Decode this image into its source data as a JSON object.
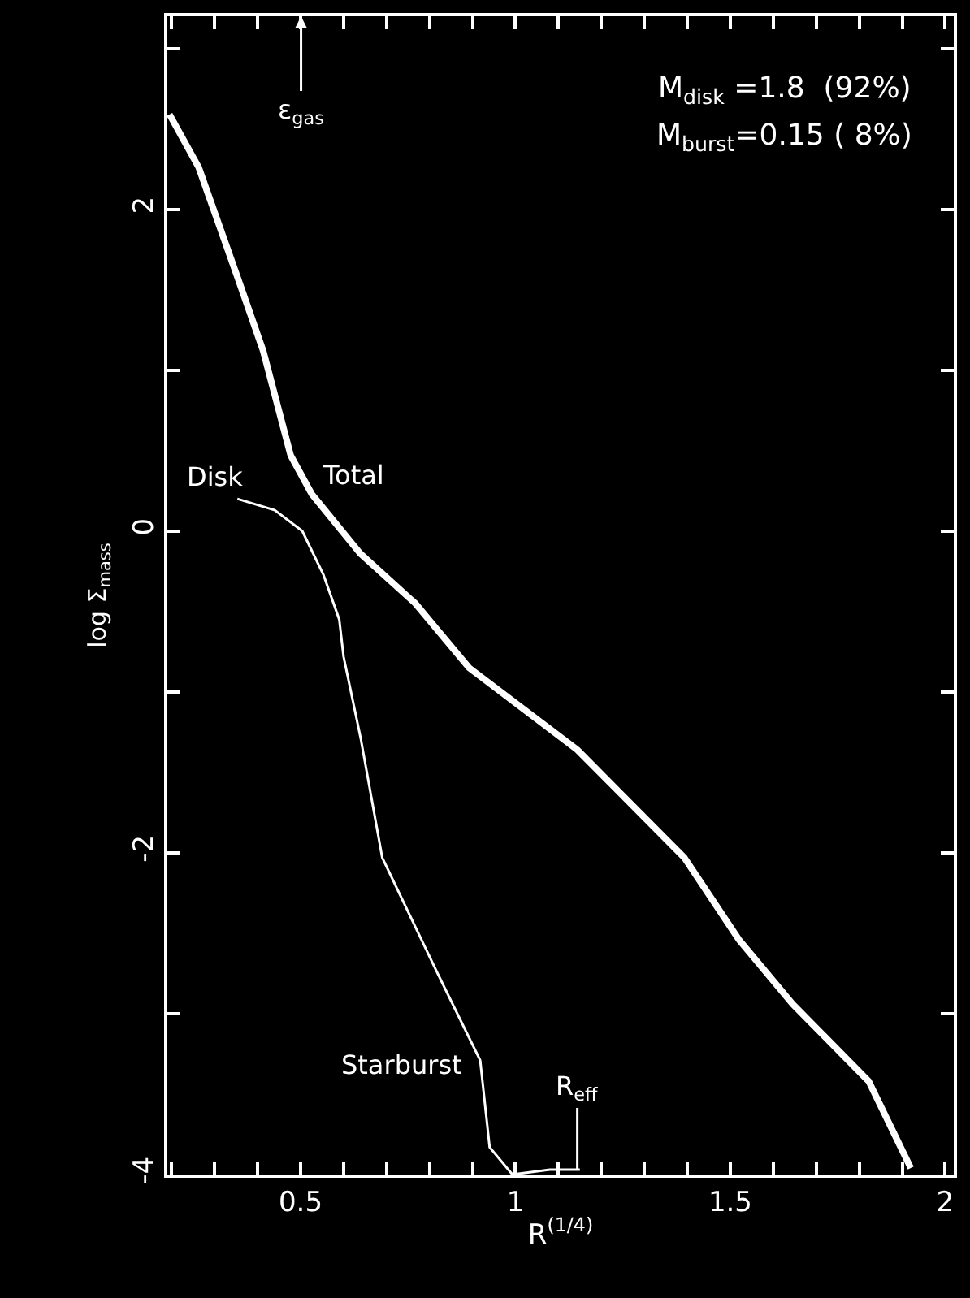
{
  "chart_data": {
    "type": "line",
    "xlabel": "R$^{(1/4)}$",
    "ylabel": "log Σ$_{mass}$",
    "xlim": [
      0.19,
      2.02
    ],
    "ylim": [
      -4,
      3.2
    ],
    "xticks": [
      {
        "value": 0.2,
        "label": null
      },
      {
        "value": 0.3,
        "label": null
      },
      {
        "value": 0.4,
        "label": null
      },
      0.5,
      {
        "value": 0.6,
        "label": null
      },
      {
        "value": 0.7,
        "label": null
      },
      {
        "value": 0.8,
        "label": null
      },
      {
        "value": 0.9,
        "label": null
      },
      1,
      {
        "value": 1.1,
        "label": null
      },
      {
        "value": 1.2,
        "label": null
      },
      {
        "value": 1.3,
        "label": null
      },
      {
        "value": 1.4,
        "label": null
      },
      1.5,
      {
        "value": 1.6,
        "label": null
      },
      {
        "value": 1.7,
        "label": null
      },
      {
        "value": 1.8,
        "label": null
      },
      {
        "value": 1.9,
        "label": null
      },
      2
    ],
    "yticks": [
      -4,
      {
        "value": -3,
        "label": null
      },
      -2,
      {
        "value": -1,
        "label": null
      },
      0,
      {
        "value": 1,
        "label": null
      },
      2,
      {
        "value": 3,
        "label": null
      }
    ],
    "series": [
      {
        "color": "#ffffff",
        "x": [
          0.195,
          0.263,
          0.353,
          0.413,
          0.477,
          0.526,
          0.639,
          0.767,
          0.892,
          1.144,
          1.393,
          1.52,
          1.645,
          1.822,
          1.92
        ],
        "values": [
          2.59,
          2.26,
          1.58,
          1.12,
          0.47,
          0.23,
          -0.14,
          -0.45,
          -0.85,
          -1.36,
          -2.03,
          -2.54,
          -2.94,
          -3.42,
          -3.96
        ]
      },
      {
        "color": "#ffffff",
        "x": [
          0.353,
          0.44,
          0.504,
          0.553,
          0.59,
          0.6,
          0.64,
          0.69,
          0.817,
          0.918,
          0.94,
          0.993,
          1.08,
          1.15
        ],
        "values": [
          0.2,
          0.13,
          0.0,
          -0.27,
          -0.55,
          -0.78,
          -1.29,
          -2.03,
          -2.74,
          -3.29,
          -3.83,
          -4.0,
          -3.97,
          -3.97
        ]
      }
    ],
    "annotations": [
      {
        "text": "Disk",
        "x": 0.353,
        "y": 0.2
      },
      {
        "text": "Total",
        "x": 0.526,
        "y": 0.23
      },
      {
        "text": "Starburst",
        "x": 0.918,
        "y": -3.29
      },
      "ε$_{gas}$",
      {
        "text": "R$_{eff}$",
        "x": 1.144,
        "y": -3.97
      },
      "M$_{disk}$ =1.8  (92%)",
      "M$_{burst}$=0.15 ( 8%)"
    ]
  }
}
